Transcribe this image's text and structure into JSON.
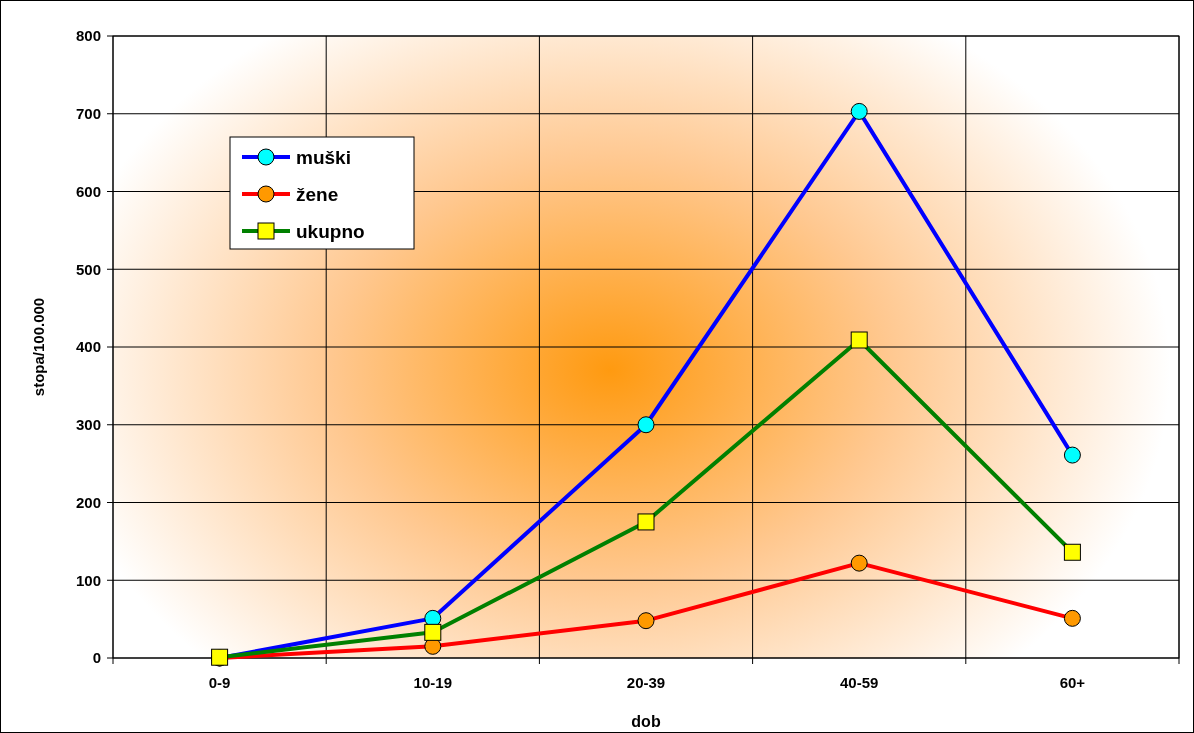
{
  "chart_data": {
    "type": "line",
    "xlabel": "dob",
    "ylabel": "stopa/100.000",
    "categories": [
      "0-9",
      "10-19",
      "20-39",
      "40-59",
      "60+"
    ],
    "series": [
      {
        "name": "muški",
        "color": "#0000ff",
        "marker": "circle",
        "values": [
          0,
          51,
          300,
          703,
          261
        ]
      },
      {
        "name": "žene",
        "color": "#ff0000",
        "marker": "circle",
        "values": [
          0,
          15,
          48,
          122,
          51
        ]
      },
      {
        "name": "ukupno",
        "color": "#008000",
        "marker": "square",
        "values": [
          1,
          33,
          175,
          409,
          136
        ]
      }
    ],
    "ylim": [
      0,
      800
    ],
    "yticks": [
      0,
      100,
      200,
      300,
      400,
      500,
      600,
      700,
      800
    ],
    "grid": true,
    "legend": "top left",
    "line_style": "solid"
  }
}
